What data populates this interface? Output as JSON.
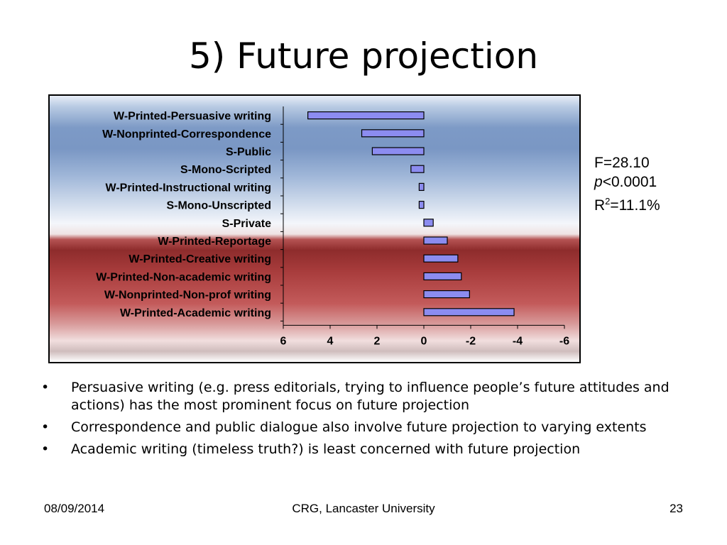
{
  "title": "5) Future projection",
  "stats": {
    "f_line": "F=28.10",
    "p_symbol": "p",
    "p_rest": "<0.0001",
    "r_prefix": "R",
    "r_sup": "2",
    "r_rest": "=11.1%"
  },
  "bullets": [
    "Persuasive writing (e.g. press editorials, trying to influence people’s future attitudes and actions) has the most prominent focus on future projection",
    "Correspondence and public dialogue also involve future projection to varying extents",
    "Academic writing (timeless truth?) is least concerned with future projection"
  ],
  "bullet_symbol": "•",
  "footer": {
    "date": "08/09/2014",
    "center": "CRG, Lancaster University",
    "page": "23"
  },
  "colors": {
    "bar_fill": "#8c8cf0",
    "bar_stroke": "#000000"
  },
  "chart_data": {
    "type": "bar",
    "orientation": "horizontal",
    "title": "",
    "xlabel": "",
    "ylabel": "",
    "x_axis_reversed": true,
    "xlim": [
      6,
      -6
    ],
    "xticks": [
      "6",
      "4",
      "2",
      "0",
      "-2",
      "-4",
      "-6"
    ],
    "xtick_values": [
      6,
      4,
      2,
      0,
      -2,
      -4,
      -6
    ],
    "grid": false,
    "categories": [
      "W-Printed-Persuasive writing",
      "W-Nonprinted-Correspondence",
      "S-Public",
      "S-Mono-Scripted",
      "W-Printed-Instructional writing",
      "S-Mono-Unscripted",
      "S-Private",
      "W-Printed-Reportage",
      "W-Printed-Creative writing",
      "W-Printed-Non-academic writing",
      "W-Nonprinted-Non-prof writing",
      "W-Printed-Academic writing"
    ],
    "values": [
      4.95,
      2.65,
      2.2,
      0.55,
      0.2,
      0.2,
      -0.4,
      -1.0,
      -1.45,
      -1.6,
      -1.95,
      -3.85
    ]
  }
}
